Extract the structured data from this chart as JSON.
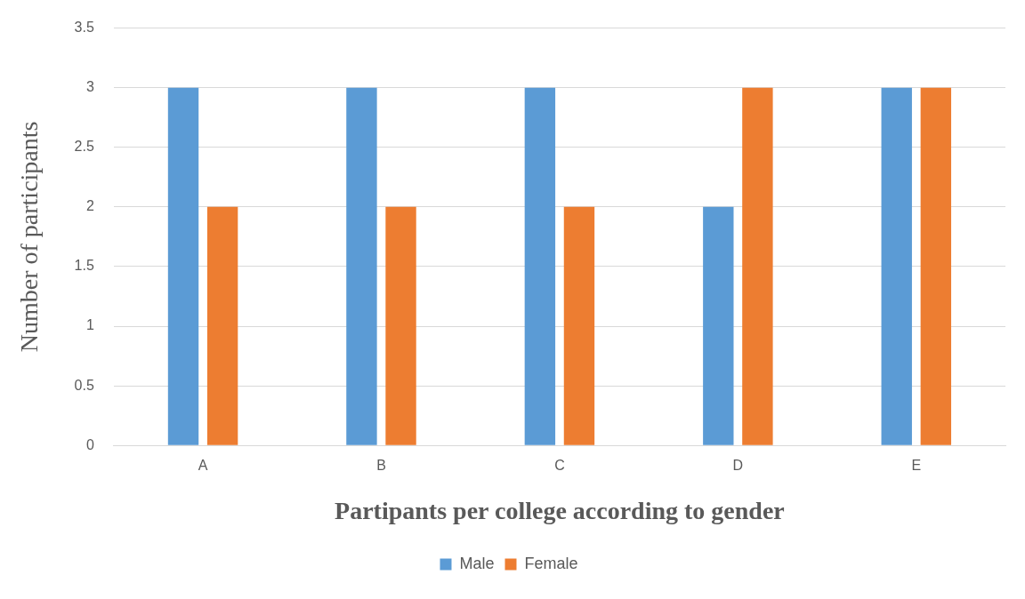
{
  "chart_data": {
    "type": "bar",
    "xlabel": "Partipants per college according to gender",
    "ylabel": "Number of participants",
    "categories": [
      "A",
      "B",
      "C",
      "D",
      "E"
    ],
    "series": [
      {
        "name": "Male",
        "color": "#5b9bd5",
        "values": [
          3,
          3,
          3,
          2,
          3
        ]
      },
      {
        "name": "Female",
        "color": "#ed7d31",
        "values": [
          2,
          2,
          2,
          3,
          3
        ]
      }
    ],
    "ylim": [
      0,
      3.5
    ],
    "yticks": [
      0,
      0.5,
      1,
      1.5,
      2,
      2.5,
      3,
      3.5
    ],
    "grid": "y",
    "legend": "bottom"
  }
}
